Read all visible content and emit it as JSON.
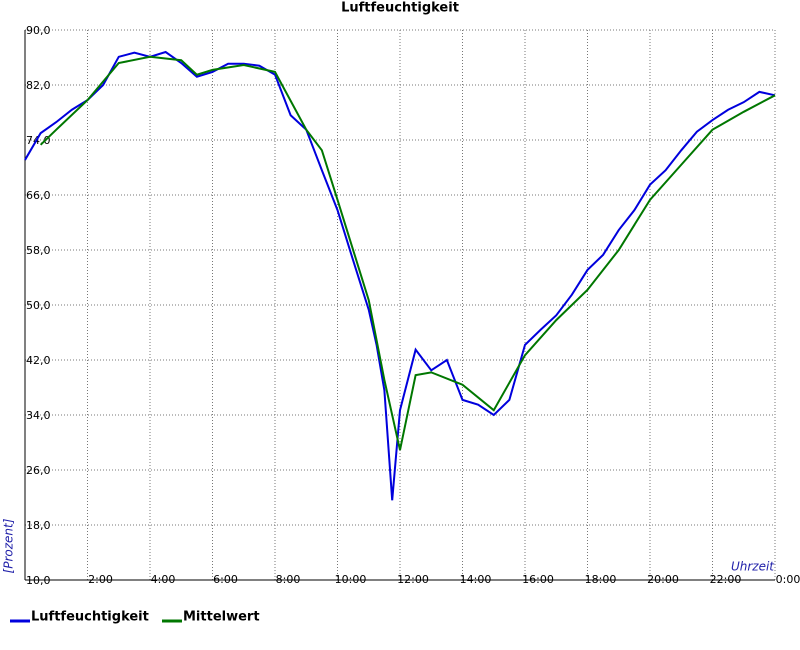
{
  "chart_data": {
    "type": "line",
    "title": "Luftfeuchtigkeit",
    "y_label": "[Prozent]",
    "x_label": "Uhrzeit",
    "xlim": [
      0,
      24
    ],
    "ylim": [
      10,
      90
    ],
    "grid": true,
    "xticks": [
      {
        "value": 2,
        "label": "2:00"
      },
      {
        "value": 4,
        "label": "4:00"
      },
      {
        "value": 6,
        "label": "6:00"
      },
      {
        "value": 8,
        "label": "8:00"
      },
      {
        "value": 10,
        "label": "10:00"
      },
      {
        "value": 12,
        "label": "12:00"
      },
      {
        "value": 14,
        "label": "14:00"
      },
      {
        "value": 16,
        "label": "16:00"
      },
      {
        "value": 18,
        "label": "18:00"
      },
      {
        "value": 20,
        "label": "20:00"
      },
      {
        "value": 22,
        "label": "22:00"
      },
      {
        "value": 24,
        "label": "0:00"
      }
    ],
    "yticks": [
      {
        "value": 10,
        "label": "10,0"
      },
      {
        "value": 18,
        "label": "18,0"
      },
      {
        "value": 26,
        "label": "26,0"
      },
      {
        "value": 34,
        "label": "34,0"
      },
      {
        "value": 42,
        "label": "42,0"
      },
      {
        "value": 50,
        "label": "50,0"
      },
      {
        "value": 58,
        "label": "58,0"
      },
      {
        "value": 66,
        "label": "66,0"
      },
      {
        "value": 74,
        "label": "74,0"
      },
      {
        "value": 82,
        "label": "82,0"
      },
      {
        "value": 90,
        "label": "90,0"
      }
    ],
    "series": [
      {
        "name": "Luftfeuchtigkeit",
        "color": "#0000dd",
        "x": [
          0,
          0.5,
          1,
          1.5,
          2,
          2.5,
          3,
          3.5,
          4,
          4.5,
          5,
          5.5,
          6,
          6.5,
          7,
          7.5,
          8,
          8.5,
          9,
          9.5,
          10,
          10.5,
          11,
          11.25,
          11.5,
          11.75,
          12,
          12.5,
          13,
          13.5,
          14,
          14.5,
          15,
          15.5,
          16,
          16.5,
          17,
          17.5,
          18,
          18.5,
          19,
          19.5,
          20,
          20.5,
          21,
          21.5,
          22,
          22.5,
          23,
          23.5,
          24
        ],
        "values": [
          71.1,
          75.0,
          76.6,
          78.4,
          79.8,
          82.0,
          86.1,
          86.7,
          86.1,
          86.8,
          85.2,
          83.2,
          83.9,
          85.1,
          85.1,
          84.8,
          83.5,
          77.6,
          75.5,
          69.6,
          63.8,
          56.5,
          49.3,
          44.2,
          37.6,
          21.6,
          34.7,
          43.5,
          40.5,
          42.0,
          36.2,
          35.5,
          34.0,
          36.2,
          44.2,
          46.4,
          48.5,
          51.5,
          55.1,
          57.3,
          60.9,
          63.8,
          67.5,
          69.6,
          72.5,
          75.2,
          76.9,
          78.4,
          79.5,
          81.0,
          80.5
        ]
      },
      {
        "name": "Mittelwert",
        "color": "#007700",
        "x": [
          0.5,
          1,
          2,
          3,
          4,
          5,
          5.5,
          6,
          7,
          8,
          9,
          9.5,
          10,
          11,
          11.5,
          12,
          12.5,
          13,
          14,
          15,
          16,
          17,
          18,
          19,
          20,
          21,
          22,
          23,
          24
        ],
        "values": [
          73.3,
          75.5,
          79.8,
          85.2,
          86.1,
          85.6,
          83.5,
          84.2,
          84.9,
          83.9,
          75.5,
          72.5,
          65.3,
          50.7,
          39.1,
          28.9,
          39.8,
          40.2,
          38.4,
          34.7,
          42.7,
          47.8,
          52.2,
          58.0,
          65.3,
          70.4,
          75.5,
          78.1,
          80.5
        ]
      }
    ]
  }
}
